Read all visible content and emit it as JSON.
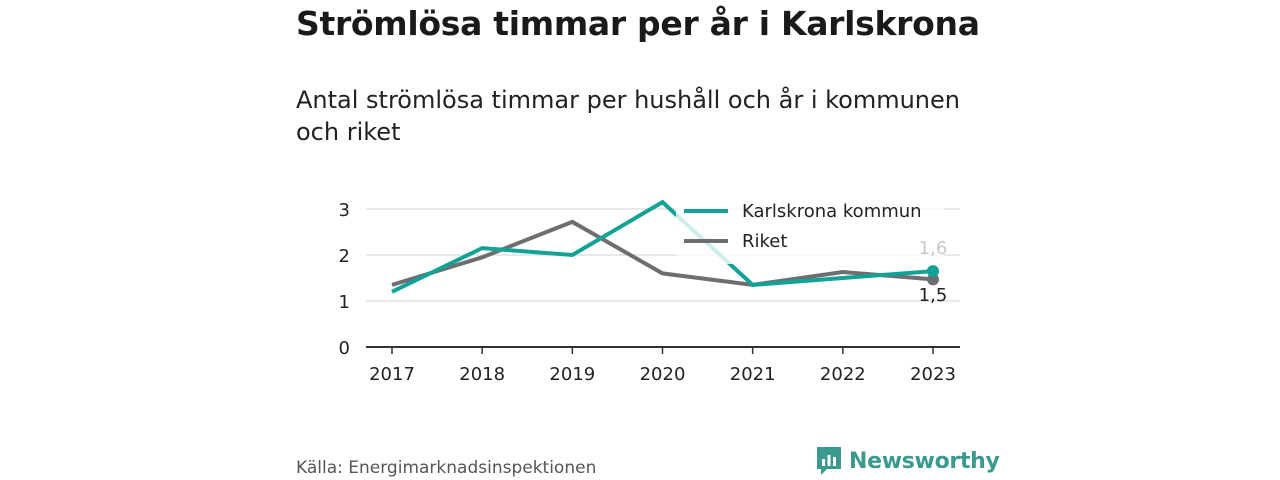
{
  "title": "Strömlösa timmar per år i Karlskrona",
  "subtitle": "Antal strömlösa timmar per hushåll och år i kommunen och riket",
  "source": "Källa: Energimarknadsinspektionen",
  "logo_text": "Newsworthy",
  "colors": {
    "karlskrona": "#12a396",
    "riket": "#6e6d72",
    "grid": "#d9d9d9",
    "axis": "#333333",
    "logo": "#3a9a8e"
  },
  "chart_data": {
    "type": "line",
    "x": [
      "2017",
      "2018",
      "2019",
      "2020",
      "2021",
      "2022",
      "2023"
    ],
    "ylim": [
      0,
      3.2
    ],
    "yticks": [
      0,
      1,
      2,
      3
    ],
    "grid": true,
    "legend_placement": "top-right",
    "series": [
      {
        "name": "Karlskrona kommun",
        "values": [
          1.2,
          2.15,
          2.0,
          3.15,
          1.35,
          1.5,
          1.65
        ],
        "end_label": "1,6"
      },
      {
        "name": "Riket",
        "values": [
          1.35,
          1.95,
          2.72,
          1.6,
          1.35,
          1.63,
          1.47
        ],
        "end_label": "1,5"
      }
    ]
  }
}
